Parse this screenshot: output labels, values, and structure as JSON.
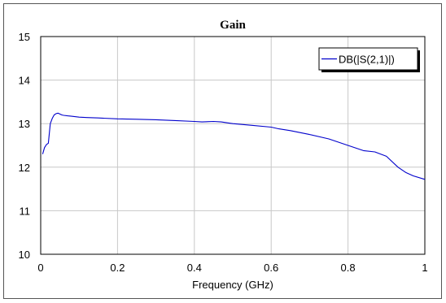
{
  "chart_data": {
    "type": "line",
    "title": "Gain",
    "xlabel": "Frequency (GHz)",
    "ylabel": "",
    "xlim": [
      0,
      1
    ],
    "ylim": [
      10,
      15
    ],
    "xticks": [
      0,
      0.2,
      0.4,
      0.6,
      0.8,
      1
    ],
    "xtick_labels": [
      "0",
      "0.2",
      "0.4",
      "0.6",
      "0.8",
      "1"
    ],
    "yticks": [
      10,
      11,
      12,
      13,
      14,
      15
    ],
    "ytick_labels": [
      "10",
      "11",
      "12",
      "13",
      "14",
      "15"
    ],
    "grid": true,
    "legend_position": "top-right",
    "series": [
      {
        "name": "DB(|S(2,1)|)",
        "color": "#0000cc",
        "x": [
          0.005,
          0.01,
          0.015,
          0.02,
          0.025,
          0.03,
          0.035,
          0.04,
          0.045,
          0.05,
          0.055,
          0.06,
          0.07,
          0.08,
          0.1,
          0.12,
          0.15,
          0.2,
          0.25,
          0.3,
          0.35,
          0.4,
          0.42,
          0.45,
          0.47,
          0.5,
          0.55,
          0.6,
          0.62,
          0.65,
          0.7,
          0.75,
          0.8,
          0.84,
          0.87,
          0.9,
          0.93,
          0.95,
          0.97,
          1.0
        ],
        "y": [
          12.3,
          12.45,
          12.52,
          12.55,
          13.0,
          13.12,
          13.2,
          13.23,
          13.24,
          13.22,
          13.2,
          13.19,
          13.18,
          13.17,
          13.15,
          13.14,
          13.13,
          13.11,
          13.1,
          13.09,
          13.07,
          13.05,
          13.04,
          13.05,
          13.04,
          13.0,
          12.96,
          12.92,
          12.88,
          12.84,
          12.75,
          12.65,
          12.5,
          12.38,
          12.35,
          12.25,
          12.0,
          11.88,
          11.8,
          11.72
        ]
      }
    ]
  }
}
